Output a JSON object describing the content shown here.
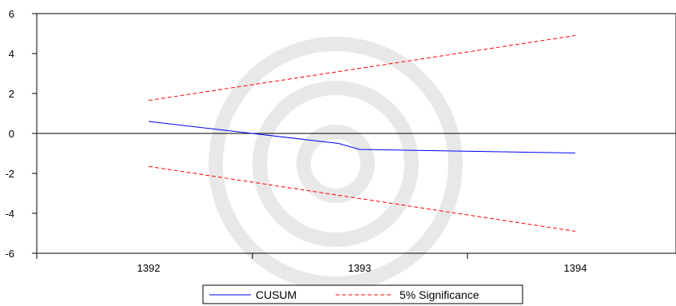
{
  "chart_data": {
    "type": "line",
    "title": "",
    "xlabel": "",
    "ylabel": "",
    "categories": [
      "1392",
      "1393",
      "1394"
    ],
    "ylim": [
      -6,
      6
    ],
    "yticks": [
      "6",
      "4",
      "2",
      "0",
      "-2",
      "-4",
      "-6"
    ],
    "zero_line": true,
    "grid": false,
    "legend_position": "bottom-center",
    "series": [
      {
        "name": "CUSUM",
        "color": "#0000ff",
        "style": "solid",
        "x": [
          0,
          0.45,
          0.9,
          1.0,
          2.0
        ],
        "y": [
          0.6,
          0.05,
          -0.5,
          -0.8,
          -0.98
        ]
      },
      {
        "name": "5% Significance",
        "color": "#ff0000",
        "style": "dashed",
        "x": [
          0,
          2
        ],
        "y": [
          1.65,
          4.9
        ]
      },
      {
        "name": "",
        "color": "#ff0000",
        "style": "dashed",
        "x": [
          0,
          2
        ],
        "y": [
          -1.65,
          -4.9
        ]
      }
    ],
    "legend": [
      {
        "label": "CUSUM",
        "color": "#0000ff",
        "style": "solid"
      },
      {
        "label": "5% Significance",
        "color": "#ff0000",
        "style": "dashed"
      }
    ]
  }
}
